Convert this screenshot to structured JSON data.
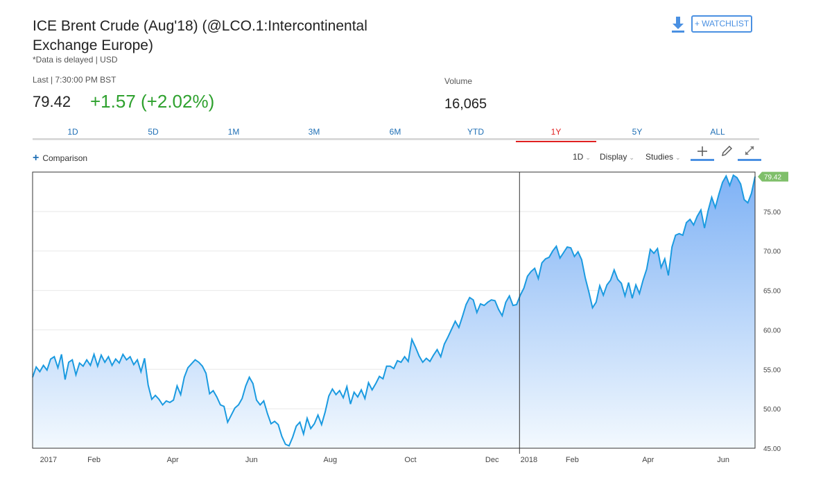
{
  "header": {
    "title": "ICE Brent Crude (Aug'18) (@LCO.1:Intercontinental Exchange Europe)",
    "delayed_note": "*Data is delayed | USD",
    "watchlist_label": "+ WATCHLIST"
  },
  "quote": {
    "last_label": "Last | 7:30:00 PM BST",
    "price": "79.42",
    "change": "+1.57 (+2.02%)",
    "volume_label": "Volume",
    "volume": "16,065"
  },
  "ranges": [
    "1D",
    "5D",
    "1M",
    "3M",
    "6M",
    "YTD",
    "1Y",
    "5Y",
    "ALL"
  ],
  "active_range": "1Y",
  "controls": {
    "comparison": "Comparison",
    "interval": "1D",
    "display": "Display",
    "studies": "Studies"
  },
  "colors": {
    "line": "#1a9ae0",
    "fill_top": "#7fb2f5",
    "fill_bottom": "#f3f9fe",
    "up": "#2ea12e",
    "active_tab": "#e02020",
    "badge": "#7fbf6a"
  },
  "chart_data": {
    "type": "area",
    "title": "ICE Brent Crude (Aug'18)",
    "ylim": [
      45,
      80
    ],
    "yticks": [
      "45.00",
      "50.00",
      "55.00",
      "60.00",
      "65.00",
      "70.00",
      "75.00"
    ],
    "x_labels": [
      {
        "label": "2017",
        "t": 0.022
      },
      {
        "label": "Feb",
        "t": 0.085
      },
      {
        "label": "Apr",
        "t": 0.194
      },
      {
        "label": "Jun",
        "t": 0.303
      },
      {
        "label": "Aug",
        "t": 0.412
      },
      {
        "label": "Oct",
        "t": 0.523
      },
      {
        "label": "Dec",
        "t": 0.636
      },
      {
        "label": "2018",
        "t": 0.687
      },
      {
        "label": "Feb",
        "t": 0.747
      },
      {
        "label": "Apr",
        "t": 0.852
      },
      {
        "label": "Jun",
        "t": 0.956
      }
    ],
    "year_divider_t": 0.674,
    "last_value": "79.42",
    "series": [
      {
        "name": "LCO.1",
        "points": [
          [
            0.0,
            54.0
          ],
          [
            0.005,
            55.3
          ],
          [
            0.01,
            54.7
          ],
          [
            0.015,
            55.5
          ],
          [
            0.02,
            54.9
          ],
          [
            0.025,
            56.3
          ],
          [
            0.03,
            56.6
          ],
          [
            0.035,
            55.2
          ],
          [
            0.04,
            56.9
          ],
          [
            0.045,
            53.7
          ],
          [
            0.05,
            55.9
          ],
          [
            0.055,
            56.2
          ],
          [
            0.06,
            54.3
          ],
          [
            0.065,
            55.8
          ],
          [
            0.07,
            55.4
          ],
          [
            0.075,
            56.2
          ],
          [
            0.08,
            55.5
          ],
          [
            0.085,
            56.9
          ],
          [
            0.09,
            55.4
          ],
          [
            0.095,
            56.8
          ],
          [
            0.1,
            55.9
          ],
          [
            0.105,
            56.6
          ],
          [
            0.11,
            55.5
          ],
          [
            0.115,
            56.3
          ],
          [
            0.12,
            55.8
          ],
          [
            0.125,
            56.9
          ],
          [
            0.13,
            56.2
          ],
          [
            0.135,
            56.6
          ],
          [
            0.14,
            55.6
          ],
          [
            0.145,
            56.2
          ],
          [
            0.15,
            54.7
          ],
          [
            0.155,
            56.4
          ],
          [
            0.16,
            53.0
          ],
          [
            0.165,
            51.2
          ],
          [
            0.17,
            51.7
          ],
          [
            0.175,
            51.2
          ],
          [
            0.18,
            50.5
          ],
          [
            0.185,
            51.0
          ],
          [
            0.19,
            50.8
          ],
          [
            0.195,
            51.1
          ],
          [
            0.2,
            52.9
          ],
          [
            0.205,
            51.8
          ],
          [
            0.21,
            54.0
          ],
          [
            0.215,
            55.2
          ],
          [
            0.22,
            55.7
          ],
          [
            0.225,
            56.2
          ],
          [
            0.23,
            55.9
          ],
          [
            0.235,
            55.4
          ],
          [
            0.24,
            54.5
          ],
          [
            0.245,
            51.9
          ],
          [
            0.25,
            52.3
          ],
          [
            0.255,
            51.5
          ],
          [
            0.26,
            50.5
          ],
          [
            0.265,
            50.3
          ],
          [
            0.27,
            48.3
          ],
          [
            0.275,
            49.2
          ],
          [
            0.28,
            50.1
          ],
          [
            0.285,
            50.5
          ],
          [
            0.29,
            51.3
          ],
          [
            0.295,
            52.9
          ],
          [
            0.3,
            54.0
          ],
          [
            0.305,
            53.2
          ],
          [
            0.31,
            51.1
          ],
          [
            0.315,
            50.5
          ],
          [
            0.32,
            51.0
          ],
          [
            0.325,
            49.4
          ],
          [
            0.33,
            48.1
          ],
          [
            0.335,
            48.4
          ],
          [
            0.34,
            48.0
          ],
          [
            0.345,
            46.5
          ],
          [
            0.35,
            45.5
          ],
          [
            0.355,
            45.3
          ],
          [
            0.36,
            46.4
          ],
          [
            0.365,
            47.8
          ],
          [
            0.37,
            48.3
          ],
          [
            0.375,
            46.8
          ],
          [
            0.38,
            48.8
          ],
          [
            0.385,
            47.5
          ],
          [
            0.39,
            48.1
          ],
          [
            0.395,
            49.2
          ],
          [
            0.4,
            48.0
          ],
          [
            0.405,
            49.6
          ],
          [
            0.41,
            51.6
          ],
          [
            0.415,
            52.5
          ],
          [
            0.42,
            51.8
          ],
          [
            0.425,
            52.3
          ],
          [
            0.43,
            51.4
          ],
          [
            0.435,
            52.8
          ],
          [
            0.44,
            50.6
          ],
          [
            0.445,
            52.1
          ],
          [
            0.45,
            51.5
          ],
          [
            0.455,
            52.4
          ],
          [
            0.46,
            51.3
          ],
          [
            0.465,
            53.3
          ],
          [
            0.47,
            52.4
          ],
          [
            0.475,
            53.2
          ],
          [
            0.48,
            54.1
          ],
          [
            0.485,
            53.8
          ],
          [
            0.49,
            55.4
          ],
          [
            0.495,
            55.4
          ],
          [
            0.5,
            55.1
          ],
          [
            0.505,
            56.1
          ],
          [
            0.51,
            55.9
          ],
          [
            0.515,
            56.6
          ],
          [
            0.52,
            56.0
          ],
          [
            0.525,
            58.8
          ],
          [
            0.53,
            57.8
          ],
          [
            0.535,
            56.7
          ],
          [
            0.54,
            55.9
          ],
          [
            0.545,
            56.4
          ],
          [
            0.55,
            56.0
          ],
          [
            0.555,
            56.8
          ],
          [
            0.56,
            57.5
          ],
          [
            0.565,
            56.6
          ],
          [
            0.57,
            58.2
          ],
          [
            0.575,
            59.1
          ],
          [
            0.58,
            60.1
          ],
          [
            0.585,
            61.1
          ],
          [
            0.59,
            60.3
          ],
          [
            0.595,
            61.7
          ],
          [
            0.6,
            63.2
          ],
          [
            0.605,
            64.1
          ],
          [
            0.61,
            63.8
          ],
          [
            0.615,
            62.2
          ],
          [
            0.62,
            63.3
          ],
          [
            0.625,
            63.1
          ],
          [
            0.63,
            63.5
          ],
          [
            0.635,
            63.8
          ],
          [
            0.64,
            63.7
          ],
          [
            0.645,
            62.6
          ],
          [
            0.65,
            61.8
          ],
          [
            0.655,
            63.5
          ],
          [
            0.66,
            64.3
          ],
          [
            0.665,
            63.1
          ],
          [
            0.67,
            63.2
          ],
          [
            0.675,
            64.4
          ],
          [
            0.68,
            65.3
          ],
          [
            0.685,
            66.8
          ],
          [
            0.69,
            67.4
          ],
          [
            0.695,
            67.8
          ],
          [
            0.7,
            66.5
          ],
          [
            0.705,
            68.5
          ],
          [
            0.71,
            69.0
          ],
          [
            0.715,
            69.2
          ],
          [
            0.72,
            70.0
          ],
          [
            0.725,
            70.6
          ],
          [
            0.73,
            69.1
          ],
          [
            0.735,
            69.8
          ],
          [
            0.74,
            70.5
          ],
          [
            0.745,
            70.4
          ],
          [
            0.75,
            69.3
          ],
          [
            0.755,
            69.9
          ],
          [
            0.76,
            68.9
          ],
          [
            0.765,
            66.6
          ],
          [
            0.77,
            64.8
          ],
          [
            0.775,
            62.8
          ],
          [
            0.78,
            63.5
          ],
          [
            0.785,
            65.6
          ],
          [
            0.79,
            64.4
          ],
          [
            0.795,
            65.7
          ],
          [
            0.8,
            66.3
          ],
          [
            0.805,
            67.6
          ],
          [
            0.81,
            66.4
          ],
          [
            0.815,
            65.9
          ],
          [
            0.82,
            64.3
          ],
          [
            0.825,
            66.0
          ],
          [
            0.83,
            64.0
          ],
          [
            0.835,
            65.7
          ],
          [
            0.84,
            64.6
          ],
          [
            0.845,
            66.3
          ],
          [
            0.85,
            67.7
          ],
          [
            0.855,
            70.2
          ],
          [
            0.86,
            69.7
          ],
          [
            0.865,
            70.3
          ],
          [
            0.87,
            67.9
          ],
          [
            0.875,
            69.0
          ],
          [
            0.88,
            66.9
          ],
          [
            0.885,
            70.5
          ],
          [
            0.89,
            72.0
          ],
          [
            0.895,
            72.2
          ],
          [
            0.9,
            72.0
          ],
          [
            0.905,
            73.6
          ],
          [
            0.91,
            74.0
          ],
          [
            0.915,
            73.3
          ],
          [
            0.92,
            74.4
          ],
          [
            0.925,
            75.2
          ],
          [
            0.93,
            72.9
          ],
          [
            0.935,
            75.1
          ],
          [
            0.94,
            76.8
          ],
          [
            0.945,
            75.5
          ],
          [
            0.95,
            77.2
          ],
          [
            0.955,
            78.7
          ],
          [
            0.96,
            79.5
          ],
          [
            0.965,
            78.3
          ],
          [
            0.97,
            79.6
          ],
          [
            0.975,
            79.3
          ],
          [
            0.98,
            78.5
          ],
          [
            0.985,
            76.5
          ],
          [
            0.99,
            76.1
          ],
          [
            0.995,
            77.3
          ],
          [
            1.0,
            79.42
          ]
        ]
      }
    ]
  }
}
